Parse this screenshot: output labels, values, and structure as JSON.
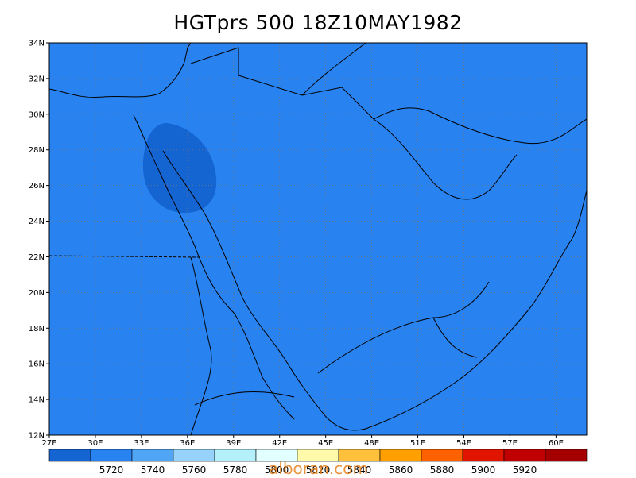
{
  "title": "HGTprs 500 18Z10MAY1982",
  "watermark": "alboran.com",
  "map": {
    "lon_range": [
      27,
      62
    ],
    "lat_range": [
      12,
      34
    ],
    "lon_ticks": [
      "27E",
      "30E",
      "33E",
      "36E",
      "39E",
      "42E",
      "45E",
      "48E",
      "51E",
      "54E",
      "57E",
      "60E"
    ],
    "lat_ticks": [
      "12N",
      "14N",
      "16N",
      "18N",
      "20N",
      "22N",
      "24N",
      "26N",
      "28N",
      "30N",
      "32N",
      "34N"
    ],
    "grid": true,
    "grid_style": "dotted"
  },
  "legend": {
    "labels": [
      "5720",
      "5740",
      "5760",
      "5780",
      "5800",
      "5820",
      "5840",
      "5860",
      "5880",
      "5900",
      "5920"
    ],
    "colors": [
      "#1464d2",
      "#2882f0",
      "#50a5f5",
      "#96d2fa",
      "#b4f0fa",
      "#e1ffff",
      "#fffaaa",
      "#ffc03c",
      "#ffa000",
      "#ff6000",
      "#e11400",
      "#c00000",
      "#a50000"
    ]
  }
}
